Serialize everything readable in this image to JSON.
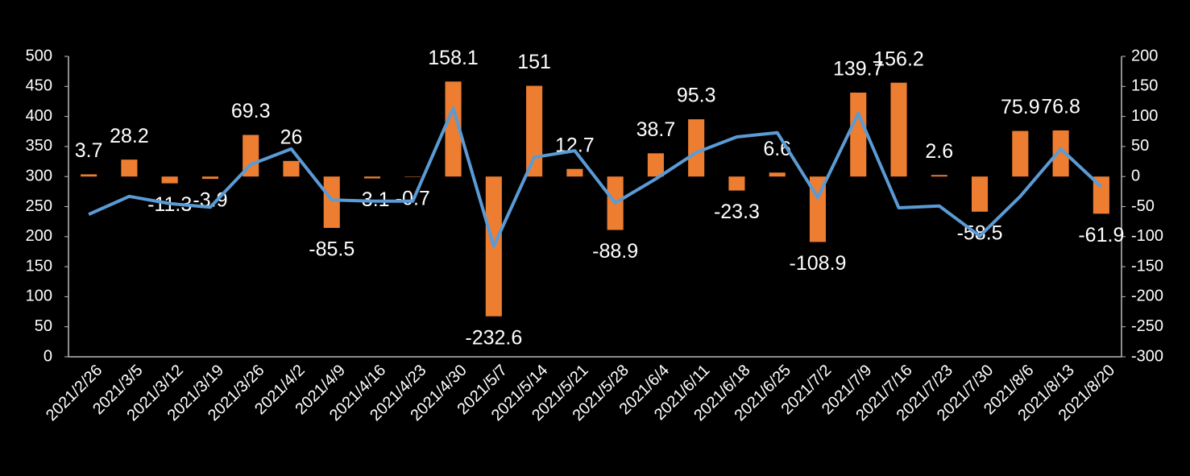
{
  "chart_data": {
    "type": "bar-line",
    "categories": [
      "2021/2/26",
      "2021/3/5",
      "2021/3/12",
      "2021/3/19",
      "2021/3/26",
      "2021/4/2",
      "2021/4/9",
      "2021/4/16",
      "2021/4/23",
      "2021/4/30",
      "2021/5/7",
      "2021/5/14",
      "2021/5/21",
      "2021/5/28",
      "2021/6/4",
      "2021/6/11",
      "2021/6/18",
      "2021/6/25",
      "2021/7/2",
      "2021/7/9",
      "2021/7/16",
      "2021/7/23",
      "2021/7/30",
      "2021/8/6",
      "2021/8/13",
      "2021/8/20"
    ],
    "series": [
      {
        "type": "bar",
        "axis": "y2",
        "color": "#ed7d31",
        "values": [
          3.7,
          28.2,
          -11.3,
          -3.9,
          69.3,
          26,
          -85.5,
          -3.1,
          -0.7,
          158.1,
          -232.6,
          151,
          12.7,
          -88.9,
          38.7,
          95.3,
          -23.3,
          6.6,
          -108.9,
          139.7,
          156.2,
          2.6,
          -58.5,
          75.9,
          76.8,
          -61.9
        ]
      },
      {
        "type": "line",
        "color": "#5b9bd5",
        "values": [
          237,
          267,
          255,
          249,
          320,
          346,
          261,
          259,
          259,
          414,
          184,
          332,
          343,
          256,
          296,
          340,
          366,
          373,
          265,
          405,
          248,
          251,
          201,
          267,
          346,
          283
        ]
      }
    ],
    "ylim": [
      0,
      500
    ],
    "yticks": [
      0,
      50,
      100,
      150,
      200,
      250,
      300,
      350,
      400,
      450,
      500
    ],
    "y2lim": [
      -300,
      200
    ],
    "y2ticks": [
      -300,
      -250,
      -200,
      -150,
      -100,
      -50,
      0,
      50,
      100,
      150,
      200
    ]
  }
}
